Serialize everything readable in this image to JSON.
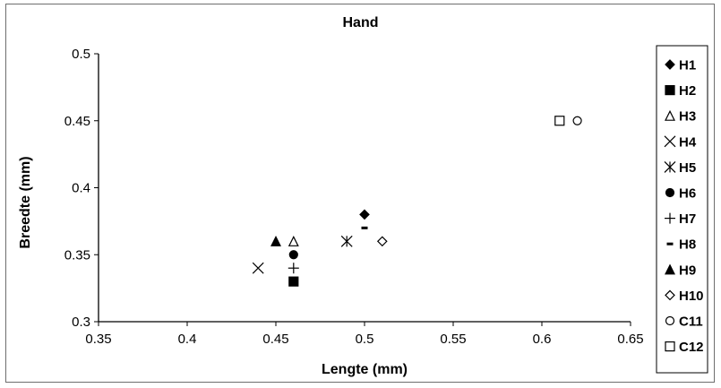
{
  "chart_data": {
    "type": "scatter",
    "title": "Hand",
    "xlabel": "Lengte (mm)",
    "ylabel": "Breedte (mm)",
    "xlim": [
      0.35,
      0.65
    ],
    "ylim": [
      0.3,
      0.5
    ],
    "xticks": [
      "0.35",
      "0.4",
      "0.45",
      "0.5",
      "0.55",
      "0.6",
      "0.65"
    ],
    "yticks": [
      "0.3",
      "0.35",
      "0.4",
      "0.45",
      "0.5"
    ],
    "grid": false,
    "legend_position": "right",
    "series": [
      {
        "name": "H1",
        "marker": "diamond-filled",
        "points": [
          [
            0.5,
            0.38
          ]
        ]
      },
      {
        "name": "H2",
        "marker": "square-filled",
        "points": [
          [
            0.46,
            0.33
          ]
        ]
      },
      {
        "name": "H3",
        "marker": "triangle-open",
        "points": [
          [
            0.46,
            0.36
          ]
        ]
      },
      {
        "name": "H4",
        "marker": "x",
        "points": [
          [
            0.44,
            0.34
          ]
        ]
      },
      {
        "name": "H5",
        "marker": "asterisk",
        "points": [
          [
            0.49,
            0.36
          ]
        ]
      },
      {
        "name": "H6",
        "marker": "circle-filled",
        "points": [
          [
            0.46,
            0.35
          ]
        ]
      },
      {
        "name": "H7",
        "marker": "plus",
        "points": [
          [
            0.46,
            0.34
          ]
        ]
      },
      {
        "name": "H8",
        "marker": "dash",
        "points": [
          [
            0.5,
            0.37
          ]
        ]
      },
      {
        "name": "H9",
        "marker": "triangle-filled",
        "points": [
          [
            0.45,
            0.36
          ]
        ]
      },
      {
        "name": "H10",
        "marker": "diamond-open",
        "points": [
          [
            0.51,
            0.36
          ]
        ]
      },
      {
        "name": "C11",
        "marker": "circle-open",
        "points": [
          [
            0.62,
            0.45
          ]
        ]
      },
      {
        "name": "C12",
        "marker": "square-open",
        "points": [
          [
            0.61,
            0.45
          ]
        ]
      }
    ]
  }
}
